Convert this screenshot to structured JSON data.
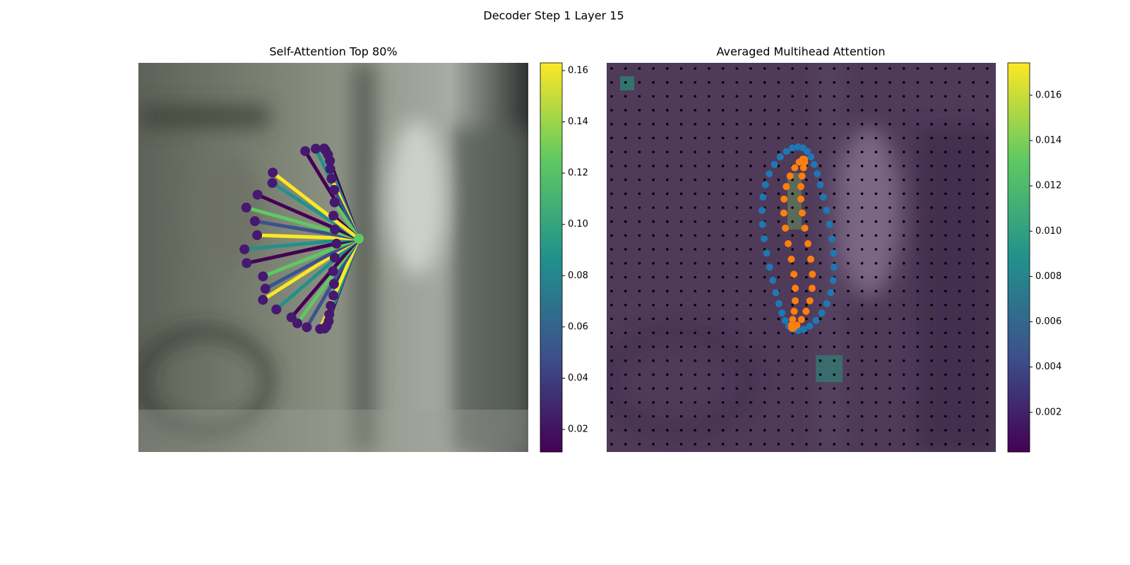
{
  "title": "Decoder Step 1 Layer 15",
  "chart_data": [
    {
      "type": "image",
      "title": "Self-Attention Top 80%",
      "colorbar": {
        "lim": [
          0.0112,
          0.163
        ],
        "ticks": [
          0.02,
          0.04,
          0.06,
          0.08,
          {
            "value": 0.1,
            "label": "0.10"
          },
          0.12,
          0.14,
          0.16
        ]
      }
    },
    {
      "type": "heatmap",
      "title": "Averaged Multihead Attention",
      "colorbar": {
        "lim": [
          0.00025,
          0.01743
        ],
        "ticks": [
          0.002,
          0.004,
          0.006,
          0.008,
          {
            "value": 0.01,
            "label": "0.010"
          },
          0.012,
          0.014,
          0.016
        ]
      }
    }
  ]
}
